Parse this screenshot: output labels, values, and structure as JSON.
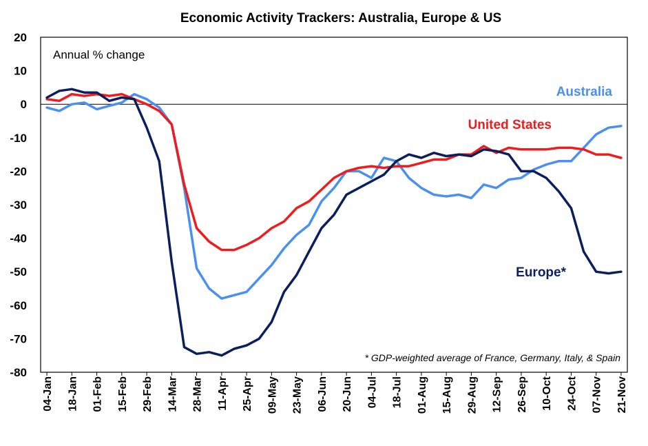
{
  "chart_data": {
    "type": "line",
    "title": "Economic Activity Trackers: Australia, Europe & US",
    "ylabel": "Annual  % change",
    "note": "* GDP-weighted average of France, Germany, Italy, & Spain",
    "ylim": [
      -80,
      20
    ],
    "yticks": [
      20,
      10,
      0,
      -10,
      -20,
      -30,
      -40,
      -50,
      -60,
      -70,
      -80
    ],
    "grid": false,
    "zero_line": true,
    "x_labels": [
      "04-Jan",
      "18-Jan",
      "01-Feb",
      "15-Feb",
      "29-Feb",
      "14-Mar",
      "28-Mar",
      "11-Apr",
      "25-Apr",
      "09-May",
      "23-May",
      "06-Jun",
      "20-Jun",
      "04-Jul",
      "18-Jul",
      "01-Aug",
      "15-Aug",
      "29-Aug",
      "12-Sep",
      "26-Sep",
      "10-Oct",
      "24-Oct",
      "07-Nov",
      "21-Nov"
    ],
    "x": [
      "04-Jan",
      "11-Jan",
      "18-Jan",
      "25-Jan",
      "01-Feb",
      "08-Feb",
      "15-Feb",
      "22-Feb",
      "29-Feb",
      "07-Mar",
      "14-Mar",
      "21-Mar",
      "28-Mar",
      "04-Apr",
      "11-Apr",
      "18-Apr",
      "25-Apr",
      "02-May",
      "09-May",
      "16-May",
      "23-May",
      "30-May",
      "06-Jun",
      "13-Jun",
      "20-Jun",
      "27-Jun",
      "04-Jul",
      "11-Jul",
      "18-Jul",
      "25-Jul",
      "01-Aug",
      "08-Aug",
      "15-Aug",
      "22-Aug",
      "29-Aug",
      "05-Sep",
      "12-Sep",
      "19-Sep",
      "26-Sep",
      "03-Oct",
      "10-Oct",
      "17-Oct",
      "24-Oct",
      "31-Oct",
      "07-Nov",
      "14-Nov",
      "21-Nov"
    ],
    "series": [
      {
        "name": "Australia",
        "color": "#4a90f0",
        "values": [
          -1,
          -2,
          0,
          0.5,
          -1.5,
          -0.5,
          0.5,
          3,
          1.5,
          -1,
          -6,
          -25,
          -49,
          -55,
          -58,
          -57,
          -56,
          -52,
          -48,
          -43,
          -39,
          -36,
          -29,
          -25,
          -20,
          -20,
          -22,
          -16,
          -17,
          -22,
          -25,
          -27,
          -27.5,
          -27,
          -28,
          -24,
          -25,
          -22.5,
          -22,
          -19.5,
          -18,
          -17,
          -17,
          -13,
          -9,
          -7,
          -6.5
        ]
      },
      {
        "name": "United States",
        "color": "#ee1c1c",
        "values": [
          1.5,
          1,
          3,
          2.5,
          3,
          2.5,
          3,
          1.5,
          0,
          -2,
          -6,
          -24,
          -37,
          -41,
          -43.5,
          -43.5,
          -42,
          -40,
          -37,
          -35,
          -31,
          -29,
          -25.5,
          -22,
          -20,
          -19,
          -18.5,
          -19,
          -18.5,
          -18.5,
          -17.5,
          -16.5,
          -16.5,
          -15,
          -15,
          -12.5,
          -14.5,
          -13,
          -13.5,
          -13.5,
          -13.5,
          -13,
          -13,
          -13.5,
          -15,
          -15,
          -16
        ]
      },
      {
        "name": "Europe*",
        "color": "#0b1f5c",
        "values": [
          2,
          4,
          4.5,
          3.5,
          3.5,
          1,
          2,
          1.5,
          -7,
          -17,
          -47,
          -72.5,
          -74.5,
          -74,
          -75,
          -73,
          -72,
          -70,
          -65,
          -56,
          -51,
          -44,
          -37,
          -33,
          -27,
          -25,
          -23,
          -21,
          -17,
          -15,
          -16,
          -14.5,
          -15.5,
          -15,
          -15.5,
          -13.5,
          -14,
          -15,
          -20,
          -20,
          -22,
          -26,
          -31,
          -44,
          -50,
          -50.5,
          -50
        ]
      }
    ]
  }
}
